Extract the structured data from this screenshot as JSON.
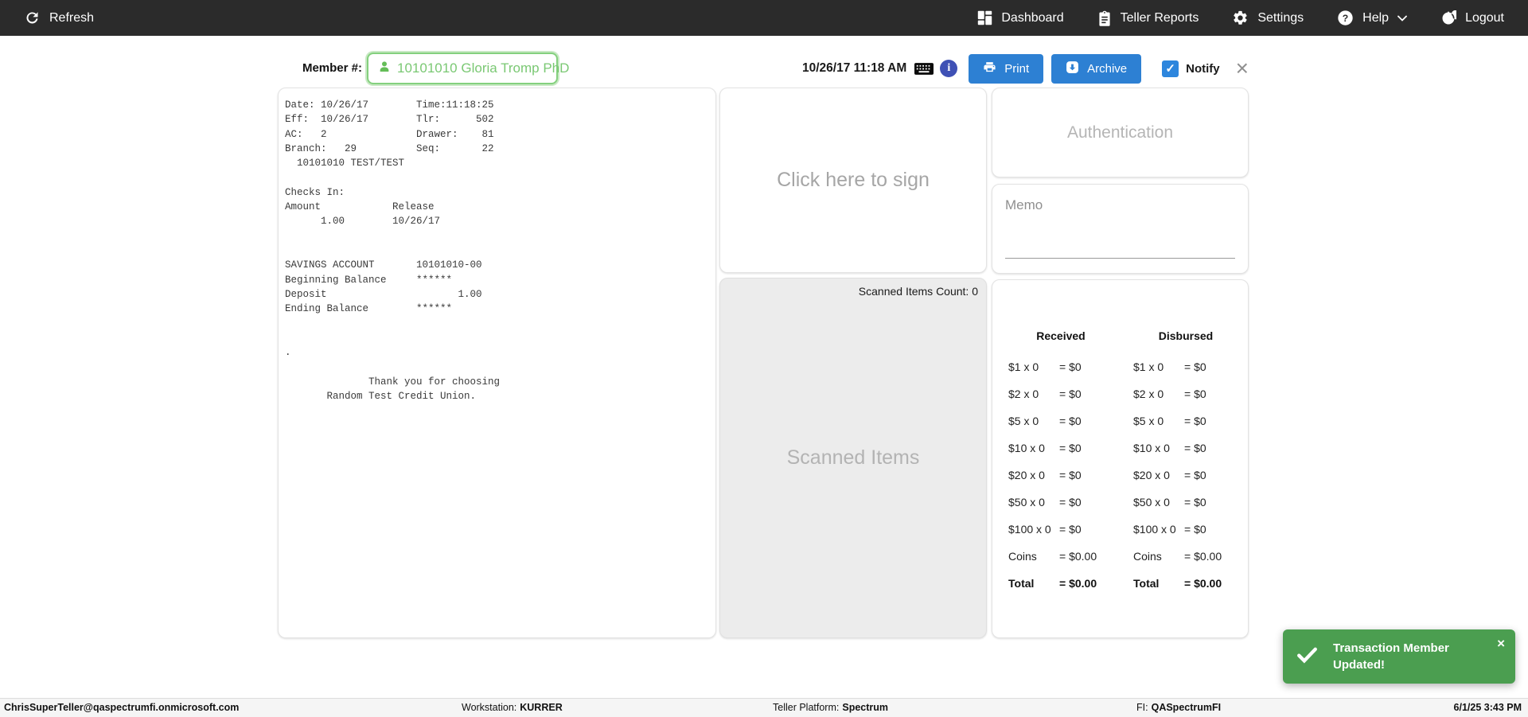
{
  "navbar": {
    "refresh_label": "Refresh",
    "items": [
      {
        "label": "Dashboard",
        "icon": "dashboard-icon"
      },
      {
        "label": "Teller Reports",
        "icon": "clipboard-icon"
      },
      {
        "label": "Settings",
        "icon": "gear-icon"
      },
      {
        "label": "Help",
        "icon": "help-icon"
      },
      {
        "label": "Logout",
        "icon": "power-icon"
      }
    ]
  },
  "member_bar": {
    "label": "Member #:",
    "value": "10101010 Gloria Tromp PhD",
    "datetime": "10/26/17 11:18 AM",
    "print_label": "Print",
    "archive_label": "Archive",
    "notify_label": "Notify",
    "notify_checked": true
  },
  "receipt": {
    "text": "Date: 10/26/17        Time:11:18:25\nEff:  10/26/17        Tlr:      502\nAC:   2               Drawer:    81\nBranch:   29          Seq:       22\n  10101010 TEST/TEST\n\nChecks In:\nAmount            Release\n      1.00        10/26/17\n\n\nSAVINGS ACCOUNT       10101010-00\nBeginning Balance     ******\nDeposit                      1.00\nEnding Balance        ******\n\n\n.\n\n              Thank you for choosing\n       Random Test Credit Union."
  },
  "signature": {
    "placeholder": "Click here to sign"
  },
  "scanned": {
    "count_label": "Scanned Items Count: 0",
    "placeholder": "Scanned Items"
  },
  "authentication": {
    "placeholder": "Authentication"
  },
  "memo": {
    "label": "Memo"
  },
  "cash": {
    "received_header": "Received",
    "disbursed_header": "Disbursed",
    "received_rows": [
      {
        "label": "$1 x 0",
        "value": "= $0"
      },
      {
        "label": "$2 x 0",
        "value": "= $0"
      },
      {
        "label": "$5 x 0",
        "value": "= $0"
      },
      {
        "label": "$10 x 0",
        "value": "= $0"
      },
      {
        "label": "$20 x 0",
        "value": "= $0"
      },
      {
        "label": "$50 x 0",
        "value": "= $0"
      },
      {
        "label": "$100 x 0",
        "value": "= $0"
      },
      {
        "label": "Coins",
        "value": "= $0.00"
      },
      {
        "label": "Total",
        "value": "= $0.00",
        "bold": true
      }
    ],
    "disbursed_rows": [
      {
        "label": "$1 x 0",
        "value": "= $0"
      },
      {
        "label": "$2 x 0",
        "value": "= $0"
      },
      {
        "label": "$5 x 0",
        "value": "= $0"
      },
      {
        "label": "$10 x 0",
        "value": "= $0"
      },
      {
        "label": "$20 x 0",
        "value": "= $0"
      },
      {
        "label": "$50 x 0",
        "value": "= $0"
      },
      {
        "label": "$100 x 0",
        "value": "= $0"
      },
      {
        "label": "Coins",
        "value": "= $0.00"
      },
      {
        "label": "Total",
        "value": "= $0.00",
        "bold": true
      }
    ]
  },
  "toast": {
    "message": "Transaction Member Updated!"
  },
  "footer": {
    "email": "ChrisSuperTeller@qaspectrumfi.onmicrosoft.com",
    "workstation_label": "Workstation:",
    "workstation_value": "KURRER",
    "platform_label": "Teller Platform:",
    "platform_value": "Spectrum",
    "fi_label": "FI:",
    "fi_value": "QASpectrumFI",
    "datetime": "6/1/25 3:43 PM"
  },
  "colors": {
    "navbar_bg": "#2b2b2b",
    "primary_button_blue": "#2d80d3",
    "checkbox_blue": "#2d86dd",
    "info_icon_indigo": "#3f51b5",
    "member_green_border": "#84d07e",
    "member_green_text": "#7ac873",
    "toast_green": "#4b9e50",
    "scanned_panel_gray": "#ececec"
  }
}
